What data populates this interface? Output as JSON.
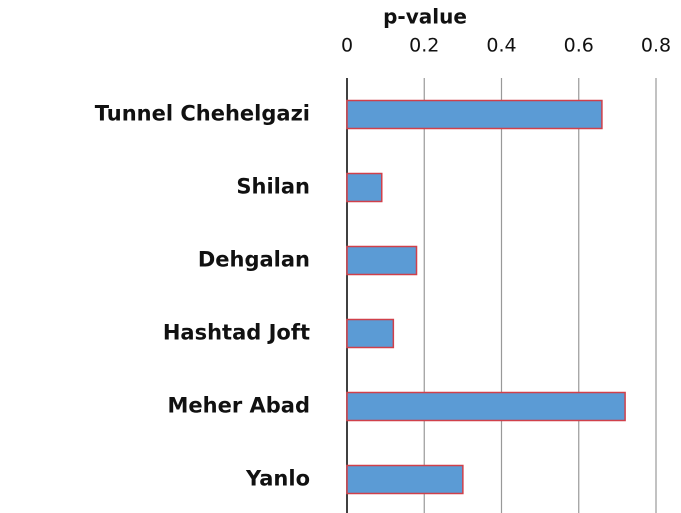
{
  "chart_data": {
    "type": "bar",
    "xlabel": "p-value",
    "categories": [
      "Tunnel Chehelgazi",
      "Shilan",
      "Dehgalan",
      "Hashtad Joft",
      "Meher Abad",
      "Yanlo"
    ],
    "values": [
      0.66,
      0.09,
      0.18,
      0.12,
      0.72,
      0.3
    ],
    "color": "#5b9bd5",
    "edgecolor": "#d0404a",
    "xlim": [
      0,
      0.8
    ],
    "xticks": [
      0,
      0.2,
      0.4,
      0.6,
      0.8
    ],
    "grid": true
  }
}
